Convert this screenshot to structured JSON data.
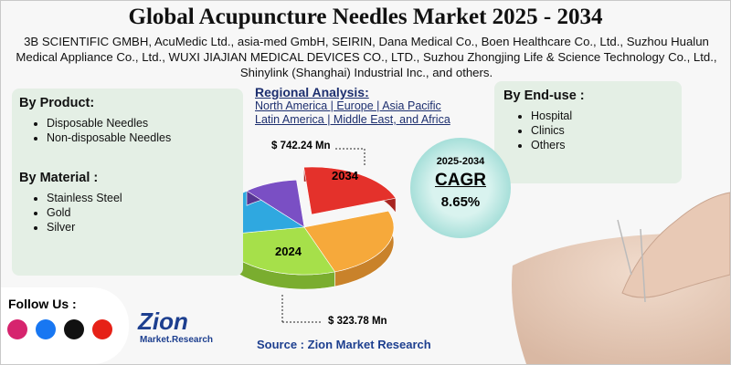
{
  "header": {
    "title": "Global Acupuncture Needles Market 2025 - 2034",
    "companies": "3B SCIENTIFIC GMBH, AcuMedic Ltd., asia-med GmbH, SEIRIN, Dana Medical Co., Boen Healthcare Co., Ltd., Suzhou Hualun Medical Appliance Co., Ltd., WUXI JIAJIAN MEDICAL DEVICES CO., LTD., Suzhou Zhongjing Life & Science Technology Co., Ltd., Shinylink (Shanghai) Industrial Inc., and others."
  },
  "by_product": {
    "title": "By Product:",
    "items": [
      "Disposable Needles",
      "Non-disposable Needles"
    ]
  },
  "by_material": {
    "title": "By Material :",
    "items": [
      "Stainless Steel",
      "Gold",
      "Silver"
    ]
  },
  "regional": {
    "title": "Regional Analysis:",
    "lines": [
      "North America | Europe | Asia Pacific",
      "Latin America | Middle East, and Africa"
    ]
  },
  "by_end_use": {
    "title": "By End-use :",
    "items": [
      "Hospital",
      "Clinics",
      "Others"
    ]
  },
  "pie_labels": {
    "value_2034": "$ 742.24 Mn",
    "year_2034": "2034",
    "year_2024": "2024",
    "value_2024": "$ 323.78 Mn"
  },
  "cagr": {
    "period": "2025-2034",
    "label": "CAGR",
    "value": "8.65%"
  },
  "follow": "Follow Us :",
  "logo": {
    "name": "Zion",
    "sub": "Market.Research"
  },
  "source": "Source : Zion Market Research"
}
